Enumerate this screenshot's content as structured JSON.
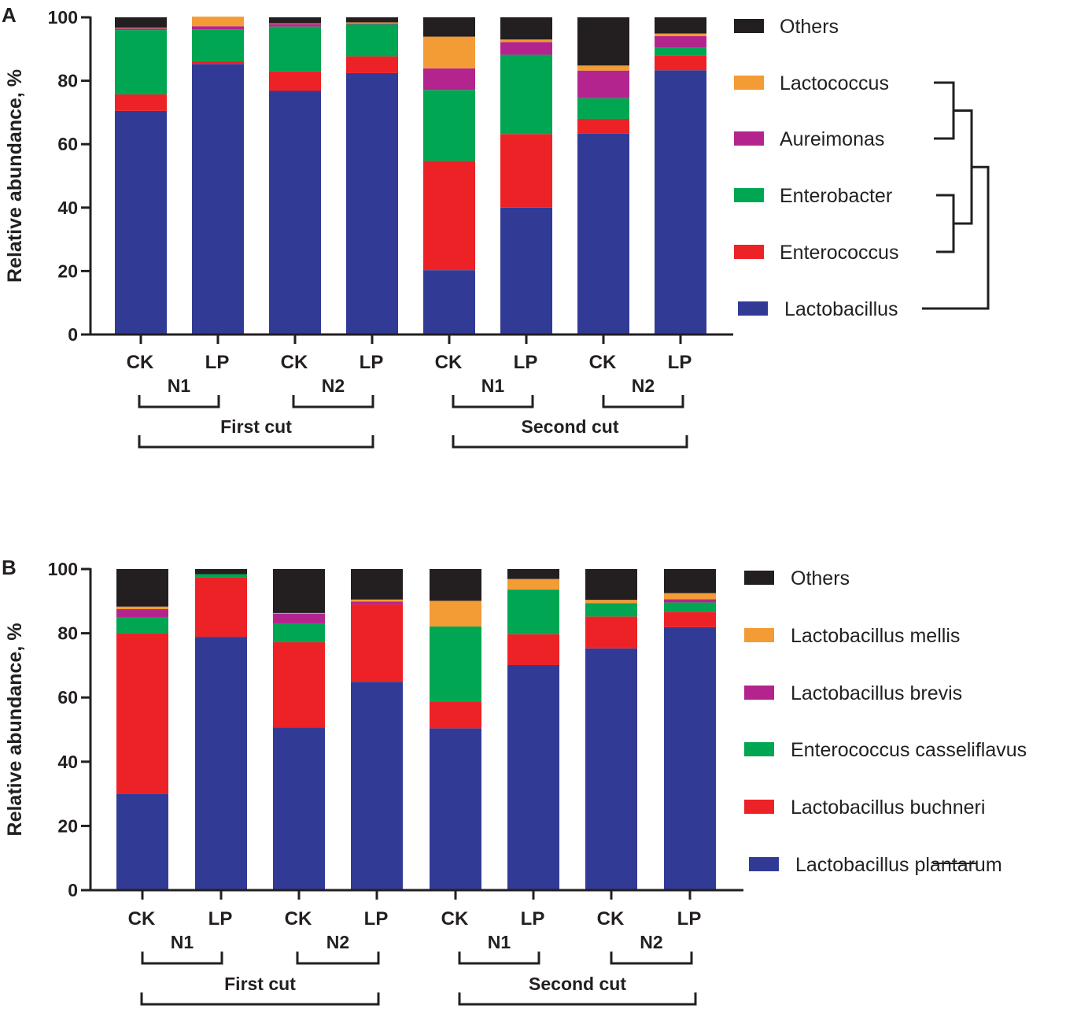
{
  "colors": {
    "Others": "#231f20",
    "Lactococcus": "#f39b35",
    "Aureimonas": "#b4248e",
    "Enterobacter": "#00a651",
    "Enterococcus": "#ec2227",
    "Lactobacillus": "#313b96",
    "Lactobacillus mellis": "#f39b35",
    "Lactobacillus brevis": "#b4248e",
    "Enterococcus casseliflavus": "#00a651",
    "Lactobacillus buchneri": "#ec2227",
    "Lactobacillus plantarum": "#313b96",
    "axis": "#231f20"
  },
  "chart_data": [
    {
      "type": "bar",
      "stacked": true,
      "panel": "A",
      "ylabel": "Relative abundance, %",
      "ylim": [
        0,
        100
      ],
      "yticks": [
        "0",
        "20",
        "40",
        "60",
        "80",
        "100"
      ],
      "categories": [
        "CK",
        "LP",
        "CK",
        "LP",
        "CK",
        "LP",
        "CK",
        "LP"
      ],
      "nitrogen_groups": [
        {
          "label": "N1",
          "bars": [
            0,
            1
          ]
        },
        {
          "label": "N2",
          "bars": [
            2,
            3
          ]
        },
        {
          "label": "N1",
          "bars": [
            4,
            5
          ]
        },
        {
          "label": "N2",
          "bars": [
            6,
            7
          ]
        }
      ],
      "cut_groups": [
        {
          "label": "First cut",
          "bars": [
            0,
            3
          ]
        },
        {
          "label": "Second cut",
          "bars": [
            4,
            7
          ]
        }
      ],
      "series": [
        {
          "name": "Lactobacillus",
          "values": [
            70.5,
            85.3,
            76.8,
            82.4,
            20.3,
            40.0,
            63.3,
            83.3
          ]
        },
        {
          "name": "Enterococcus",
          "values": [
            5.2,
            0.8,
            6.1,
            5.3,
            34.4,
            23.2,
            4.7,
            4.7
          ]
        },
        {
          "name": "Enterobacter",
          "values": [
            20.3,
            10.1,
            14.2,
            10.1,
            22.4,
            25.0,
            6.5,
            2.4
          ]
        },
        {
          "name": "Aureimonas",
          "values": [
            0.5,
            1.0,
            0.8,
            0.3,
            6.8,
            4.0,
            8.7,
            3.7
          ]
        },
        {
          "name": "Lactococcus",
          "values": [
            0.2,
            3.0,
            0.2,
            0.3,
            10.0,
            0.8,
            1.6,
            0.8
          ]
        },
        {
          "name": "Others",
          "values": [
            3.3,
            0.0,
            1.9,
            1.6,
            6.1,
            7.0,
            15.2,
            5.1
          ]
        }
      ],
      "legend": [
        "Others",
        "Lactococcus",
        "Aureimonas",
        "Enterobacter",
        "Enterococcus",
        "Lactobacillus"
      ],
      "legend_position": "right",
      "dendrogram": true
    },
    {
      "type": "bar",
      "stacked": true,
      "panel": "B",
      "ylabel": "Relative abundance, %",
      "ylim": [
        0,
        100
      ],
      "yticks": [
        "0",
        "20",
        "40",
        "60",
        "80",
        "100"
      ],
      "categories": [
        "CK",
        "LP",
        "CK",
        "LP",
        "CK",
        "LP",
        "CK",
        "LP"
      ],
      "nitrogen_groups": [
        {
          "label": "N1",
          "bars": [
            0,
            1
          ]
        },
        {
          "label": "N2",
          "bars": [
            2,
            3
          ]
        },
        {
          "label": "N1",
          "bars": [
            4,
            5
          ]
        },
        {
          "label": "N2",
          "bars": [
            6,
            7
          ]
        }
      ],
      "cut_groups": [
        {
          "label": "First cut",
          "bars": [
            0,
            3
          ]
        },
        {
          "label": "Second cut",
          "bars": [
            4,
            7
          ]
        }
      ],
      "series": [
        {
          "name": "Lactobacillus plantarum",
          "values": [
            30.0,
            78.9,
            50.7,
            64.9,
            50.4,
            70.1,
            75.3,
            81.9
          ]
        },
        {
          "name": "Lactobacillus buchneri",
          "values": [
            50.0,
            18.6,
            26.5,
            24.1,
            8.4,
            9.6,
            9.9,
            4.8
          ]
        },
        {
          "name": "Enterococcus casseliflavus",
          "values": [
            4.9,
            0.9,
            5.9,
            0.0,
            23.3,
            13.9,
            4.2,
            2.9
          ]
        },
        {
          "name": "Lactobacillus brevis",
          "values": [
            2.6,
            0.0,
            3.0,
            0.9,
            0.0,
            0.0,
            0.0,
            1.0
          ]
        },
        {
          "name": "Lactobacillus mellis",
          "values": [
            0.8,
            0.0,
            0.2,
            0.6,
            8.0,
            3.3,
            1.0,
            1.9
          ]
        },
        {
          "name": "Others",
          "values": [
            11.7,
            1.6,
            13.7,
            9.5,
            9.9,
            3.1,
            9.6,
            7.5
          ]
        }
      ],
      "legend": [
        "Others",
        "Lactobacillus mellis",
        "Lactobacillus brevis",
        "Enterococcus casseliflavus",
        "Lactobacillus buchneri",
        "Lactobacillus plantarum"
      ],
      "legend_position": "right"
    }
  ]
}
